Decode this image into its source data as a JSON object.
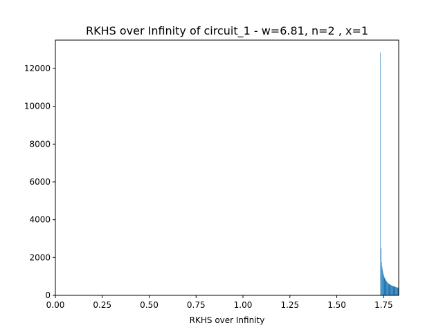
{
  "chart_data": {
    "type": "bar",
    "title": "RKHS over Infinity of circuit_1 - w=6.81, n=2 , x=1",
    "xlabel": "RKHS over Infinity",
    "ylabel": "",
    "xlim": [
      0.0,
      1.83
    ],
    "ylim": [
      0,
      13500
    ],
    "xticks": [
      0.0,
      0.25,
      0.5,
      0.75,
      1.0,
      1.25,
      1.5,
      1.75
    ],
    "xtick_labels": [
      "0.00",
      "0.25",
      "0.50",
      "0.75",
      "1.00",
      "1.25",
      "1.50",
      "1.75"
    ],
    "yticks": [
      0,
      2000,
      4000,
      6000,
      8000,
      10000,
      12000
    ],
    "ytick_labels": [
      "0",
      "2000",
      "4000",
      "6000",
      "8000",
      "10000",
      "12000"
    ],
    "grid": false,
    "bar_color": "#1f77b4",
    "bins": {
      "x_start": 1.732,
      "bin_width": 0.002,
      "counts": [
        12850,
        40,
        2480,
        1750,
        1550,
        1400,
        1280,
        1180,
        1100,
        1030,
        970,
        920,
        880,
        840,
        800,
        770,
        740,
        715,
        690,
        670,
        650,
        630,
        610,
        600,
        585,
        570,
        560,
        550,
        540,
        530,
        520,
        510,
        505,
        495,
        490,
        480,
        470,
        465,
        460,
        450,
        445,
        440,
        430,
        425,
        420,
        415,
        410,
        400
      ]
    }
  }
}
